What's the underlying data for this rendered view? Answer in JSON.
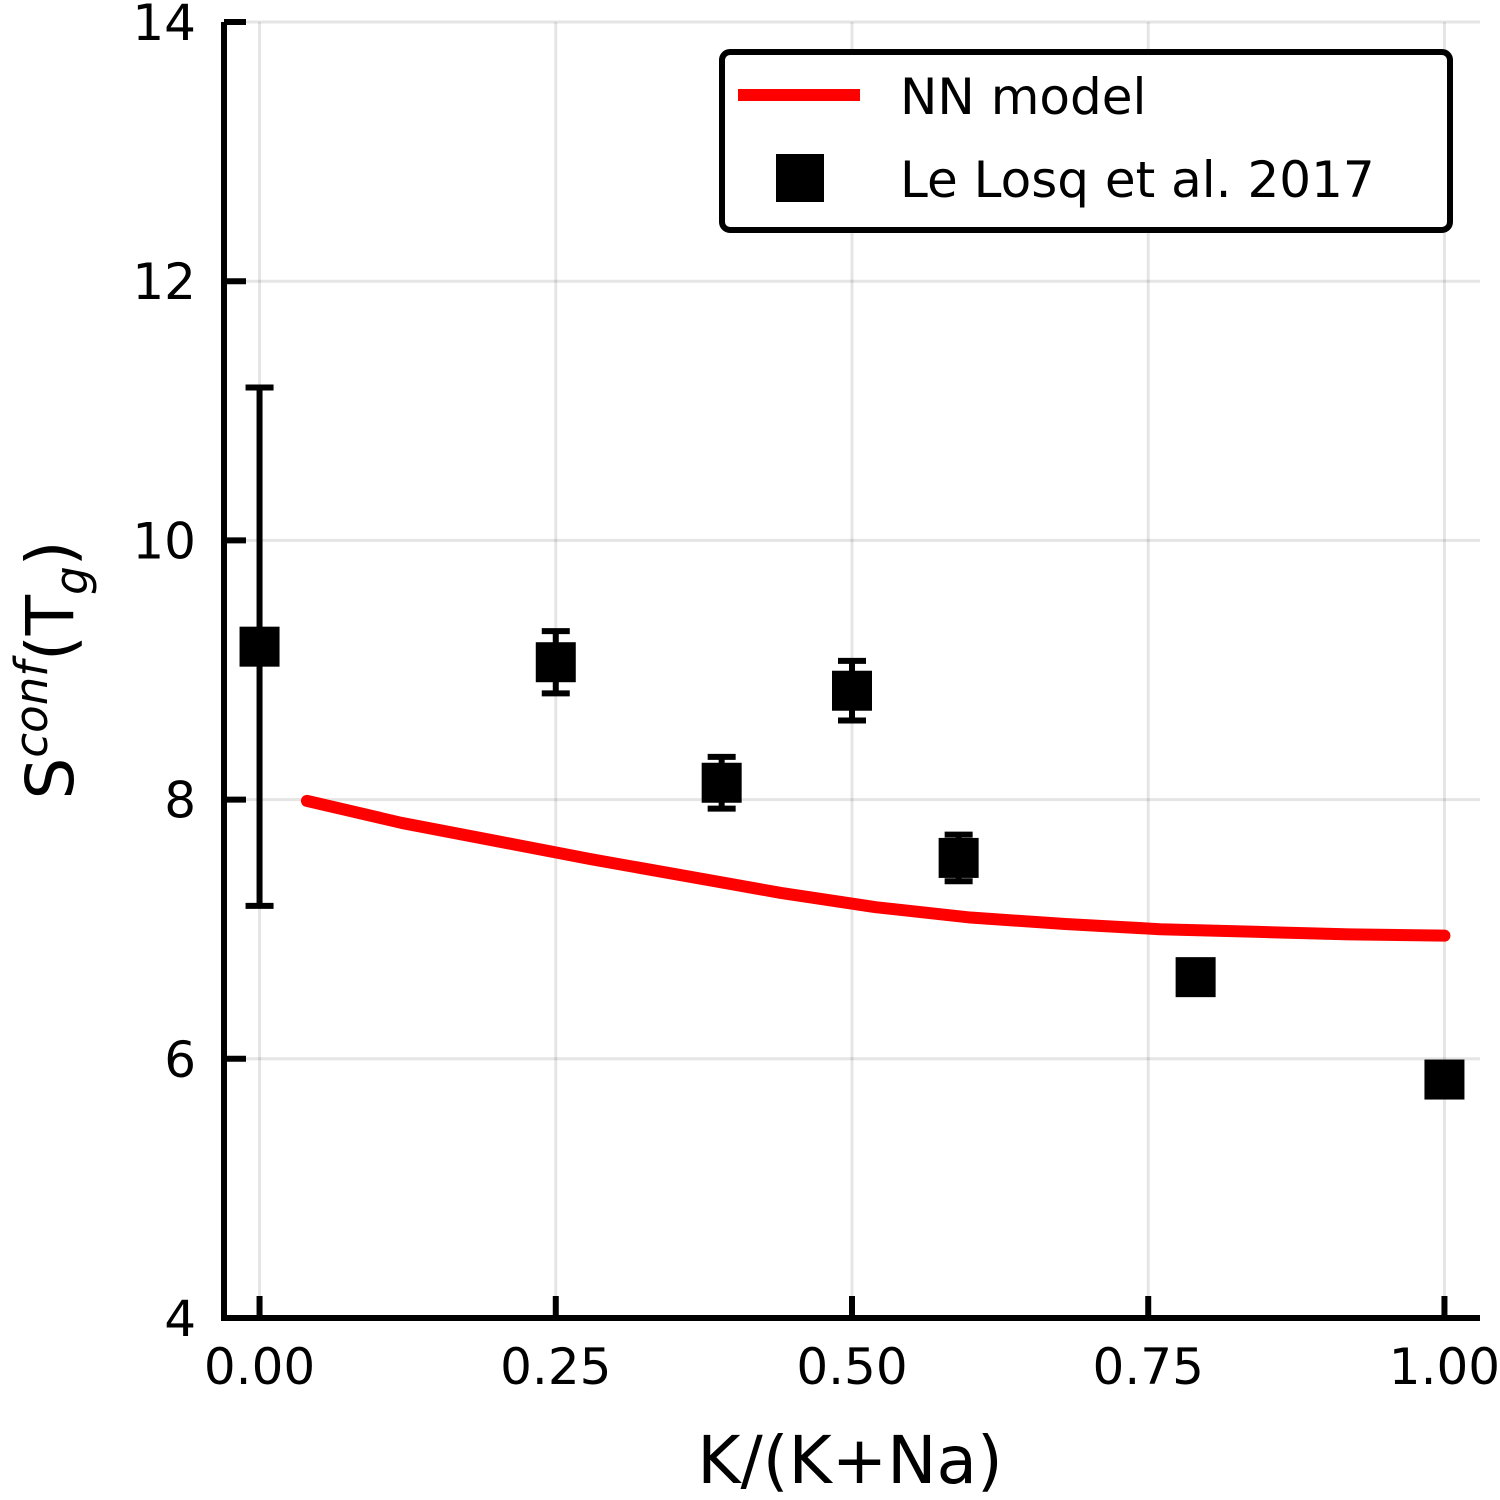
{
  "chart_data": {
    "type": "scatter",
    "xlabel": "K/(K+Na)",
    "ylabel": {
      "base": "S",
      "sup": "conf",
      "open": "(T",
      "sub": "g",
      "close": ")"
    },
    "xlim": [
      -0.03,
      1.03
    ],
    "ylim": [
      4,
      14
    ],
    "xticks": [
      0.0,
      0.25,
      0.5,
      0.75,
      1.0
    ],
    "xtick_labels": [
      "0.00",
      "0.25",
      "0.50",
      "0.75",
      "1.00"
    ],
    "yticks": [
      4,
      6,
      8,
      10,
      12,
      14
    ],
    "ytick_labels": [
      "4",
      "6",
      "8",
      "10",
      "12",
      "14"
    ],
    "grid": true,
    "legend_position": "top-right",
    "series": [
      {
        "name": "NN model",
        "kind": "line",
        "color": "#ff0000",
        "x": [
          0.04,
          0.12,
          0.2,
          0.28,
          0.36,
          0.44,
          0.52,
          0.6,
          0.68,
          0.76,
          0.84,
          0.92,
          1.0
        ],
        "y": [
          7.99,
          7.82,
          7.68,
          7.54,
          7.41,
          7.28,
          7.17,
          7.09,
          7.04,
          7.0,
          6.98,
          6.96,
          6.95
        ]
      },
      {
        "name": "Le Losq et al. 2017",
        "kind": "scatter",
        "marker": "square",
        "color": "#000000",
        "x": [
          0.0,
          0.25,
          0.39,
          0.5,
          0.59,
          0.79,
          1.0
        ],
        "y": [
          9.18,
          9.06,
          8.13,
          8.84,
          7.55,
          6.63,
          5.84
        ],
        "yerr": [
          2.0,
          0.24,
          0.2,
          0.23,
          0.18,
          0.12,
          0.06
        ]
      }
    ]
  }
}
